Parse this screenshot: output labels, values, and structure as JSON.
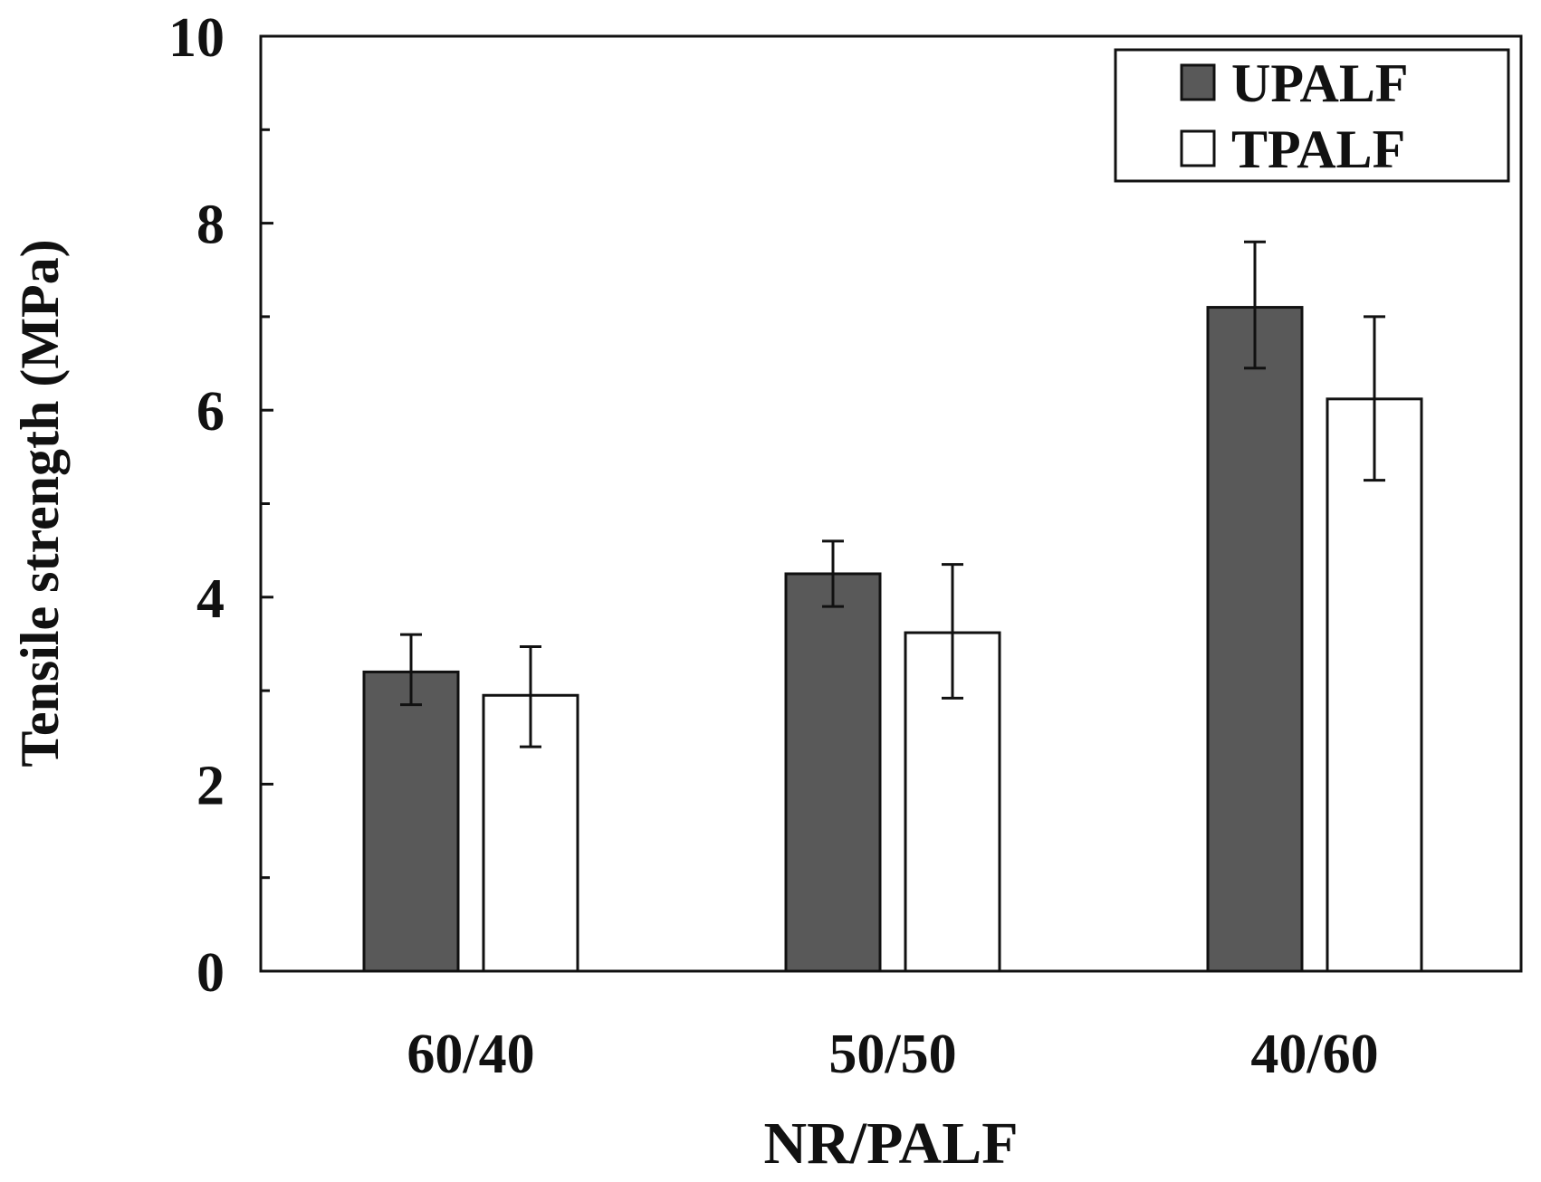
{
  "chart_data": {
    "type": "bar",
    "title": "",
    "xlabel": "NR/PALF",
    "ylabel": "Tensile strength (MPa)",
    "ylim": [
      0,
      10
    ],
    "yticks": [
      0,
      2,
      4,
      6,
      8,
      10
    ],
    "yminor_step": 1,
    "categories": [
      "60/40",
      "50/50",
      "40/60"
    ],
    "legend_position": "top-right",
    "series": [
      {
        "name": "UPALF",
        "color": "#595959",
        "values": [
          3.2,
          4.25,
          7.1
        ],
        "err_low": [
          2.85,
          3.9,
          6.45
        ],
        "err_high": [
          3.6,
          4.6,
          7.8
        ]
      },
      {
        "name": "TPALF",
        "color": "#ffffff",
        "values": [
          2.95,
          3.62,
          6.12
        ],
        "err_low": [
          2.4,
          2.92,
          5.25
        ],
        "err_high": [
          3.47,
          4.35,
          7.0
        ]
      }
    ]
  }
}
